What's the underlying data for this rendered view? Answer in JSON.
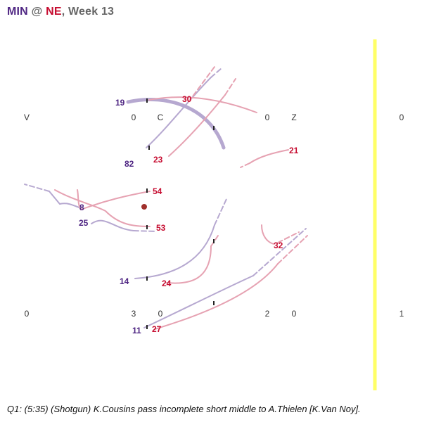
{
  "header": {
    "away_team": "MIN",
    "separator": "@",
    "home_team": "NE",
    "week_text": ", Week 13"
  },
  "colors": {
    "away": "#4f2683",
    "home": "#c60c30",
    "away_route": "#b6a8d0",
    "home_route": "#e6a2b2",
    "line_of_scrimmage": "#ffff66",
    "ball": "#a0302c"
  },
  "field": {
    "top_yard_labels": [
      "V",
      "0",
      "C",
      "0",
      "Z",
      "0"
    ],
    "bottom_yard_labels": [
      "0",
      "3",
      "0",
      "2",
      "0",
      "1"
    ]
  },
  "players": {
    "away": [
      "19",
      "82",
      "8",
      "25",
      "14",
      "11"
    ],
    "home": [
      "30",
      "23",
      "21",
      "54",
      "53",
      "32",
      "24",
      "27"
    ]
  },
  "caption": "Q1: (5:35) (Shotgun) K.Cousins pass incomplete short middle to A.Thielen [K.Van Noy]."
}
